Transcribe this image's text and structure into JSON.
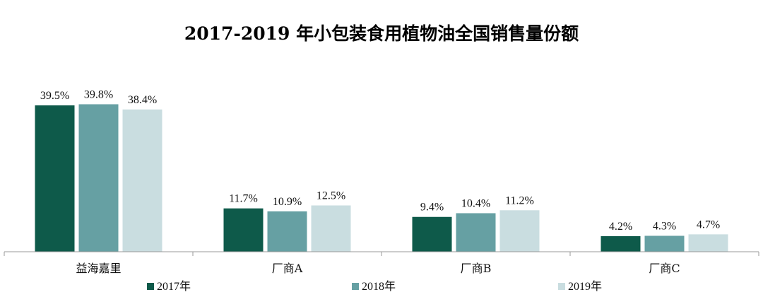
{
  "chart_data": {
    "type": "bar",
    "title": "2017-2019 年小包装食用植物油全国销售量份额",
    "categories": [
      "益海嘉里",
      "厂商A",
      "厂商B",
      "厂商C"
    ],
    "series": [
      {
        "name": "2017年",
        "color": "#0e5a4a",
        "values": [
          39.5,
          11.7,
          9.4,
          4.2
        ],
        "labels": [
          "39.5%",
          "11.7%",
          "9.4%",
          "4.2%"
        ]
      },
      {
        "name": "2018年",
        "color": "#66a0a3",
        "values": [
          39.8,
          10.9,
          10.4,
          4.3
        ],
        "labels": [
          "39.8%",
          "10.9%",
          "10.4%",
          "4.3%"
        ]
      },
      {
        "name": "2019年",
        "color": "#c9dde0",
        "values": [
          38.4,
          12.5,
          11.2,
          4.7
        ],
        "labels": [
          "38.4%",
          "12.5%",
          "11.2%",
          "4.7%"
        ]
      }
    ],
    "ylim": [
      0,
      40
    ],
    "grid": false,
    "legend_position": "bottom"
  }
}
